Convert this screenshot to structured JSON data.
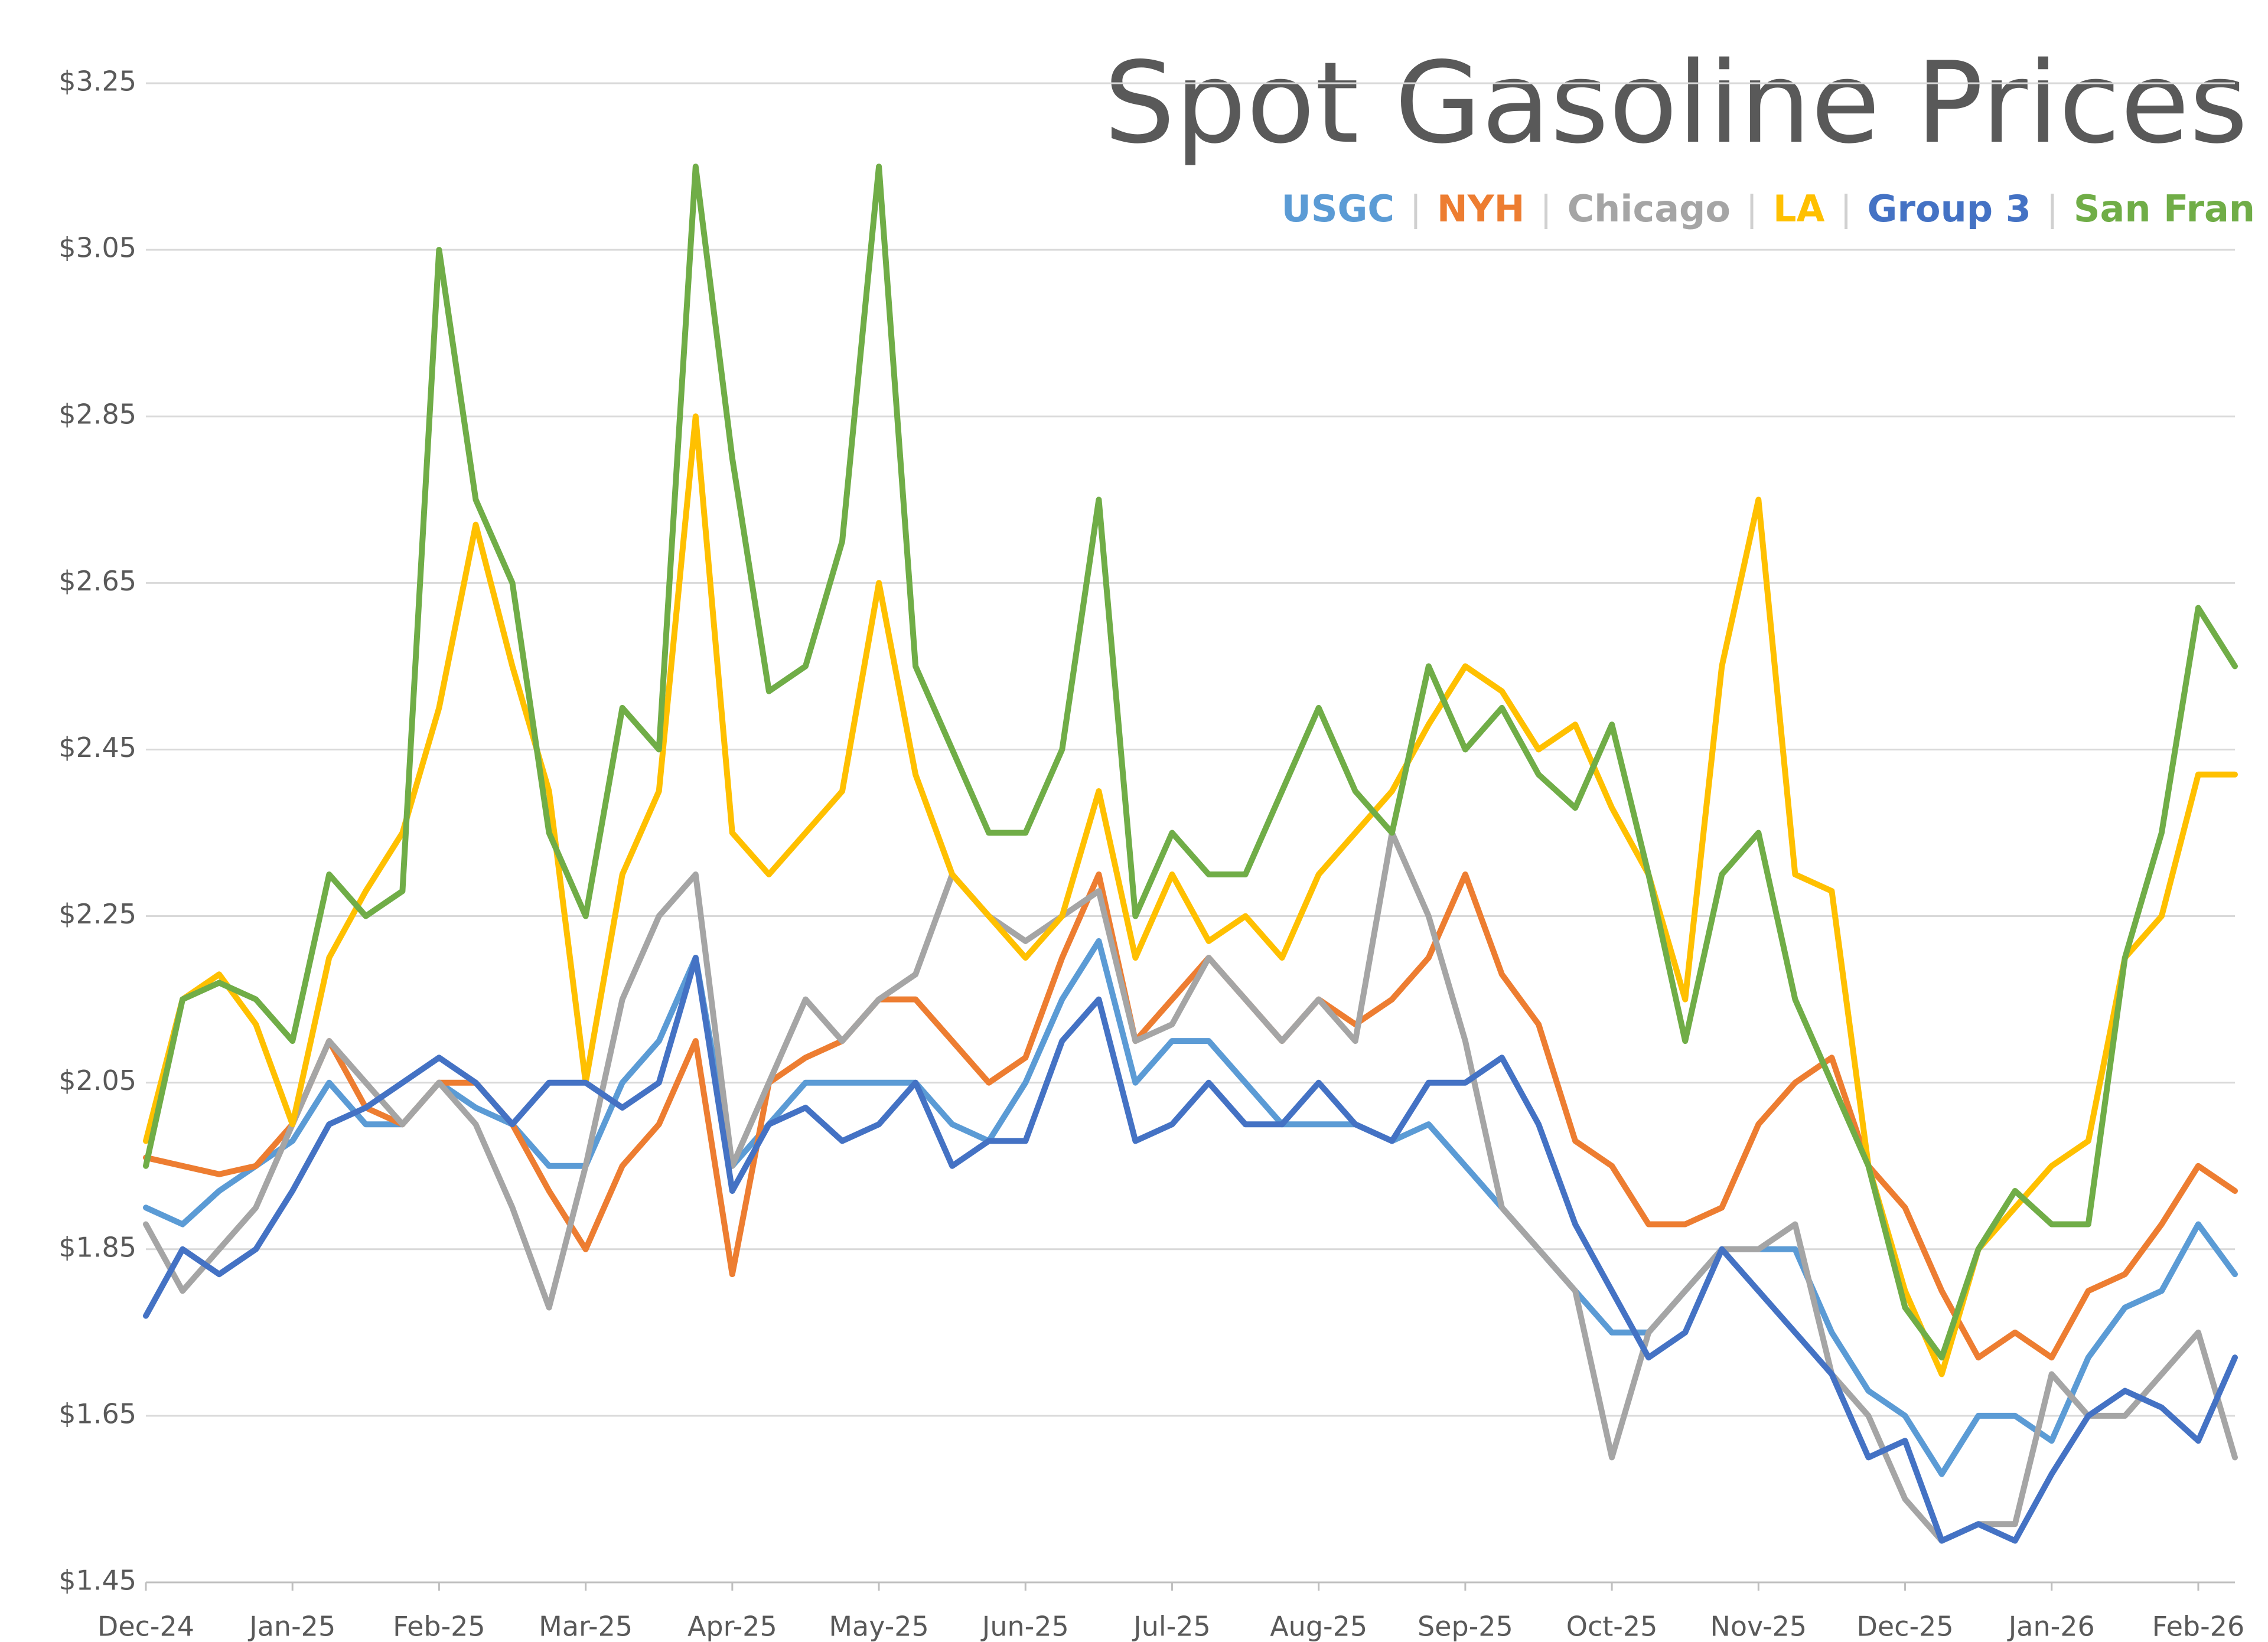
{
  "chart_data": {
    "type": "line",
    "title": "Spot Gasoline Prices",
    "categories": [
      "Dec-24",
      null,
      null,
      null,
      "Jan-25",
      null,
      null,
      null,
      "Feb-25",
      null,
      null,
      null,
      "Mar-25",
      null,
      null,
      null,
      "Apr-25",
      null,
      null,
      null,
      "May-25",
      null,
      null,
      null,
      "Jun-25",
      null,
      null,
      null,
      "Jul-25",
      null,
      null,
      null,
      "Aug-25",
      null,
      null,
      null,
      "Sep-25",
      null,
      null,
      null,
      "Oct-25",
      null,
      null,
      null,
      "Nov-25",
      null,
      null,
      null,
      "Dec-25",
      null,
      null,
      null,
      "Jan-26",
      null,
      null,
      null,
      "Feb-26",
      null
    ],
    "ylim": [
      1.45,
      3.25
    ],
    "yticks": [
      {
        "value": 1.45,
        "label": "$1.45"
      },
      {
        "value": 1.65,
        "label": "$1.65"
      },
      {
        "value": 1.85,
        "label": "$1.85"
      },
      {
        "value": 2.05,
        "label": "$2.05"
      },
      {
        "value": 2.25,
        "label": "$2.25"
      },
      {
        "value": 2.45,
        "label": "$2.45"
      },
      {
        "value": 2.65,
        "label": "$2.65"
      },
      {
        "value": 2.85,
        "label": "$2.85"
      },
      {
        "value": 3.05,
        "label": "$3.05"
      },
      {
        "value": 3.25,
        "label": "$3.25"
      }
    ],
    "grid": true,
    "series": [
      {
        "name": "USGC",
        "color": "#5b9bd5",
        "values": [
          1.9,
          1.88,
          1.92,
          1.95,
          1.98,
          2.05,
          2.0,
          2.0,
          2.05,
          2.02,
          2.0,
          1.95,
          1.95,
          2.05,
          2.1,
          2.2,
          1.95,
          2.0,
          2.05,
          2.05,
          2.05,
          2.05,
          2.0,
          1.98,
          2.05,
          2.15,
          2.22,
          2.05,
          2.1,
          2.1,
          2.05,
          2.0,
          2.0,
          2.0,
          1.98,
          2.0,
          1.95,
          1.9,
          1.85,
          1.8,
          1.75,
          1.75,
          1.8,
          1.85,
          1.85,
          1.85,
          1.75,
          1.68,
          1.65,
          1.58,
          1.65,
          1.65,
          1.62,
          1.72,
          1.78,
          1.8,
          1.88,
          1.82
        ]
      },
      {
        "name": "NYH",
        "color": "#ed7d31",
        "values": [
          1.96,
          1.95,
          1.94,
          1.95,
          2.0,
          2.1,
          2.02,
          2.0,
          2.05,
          2.05,
          2.0,
          1.92,
          1.85,
          1.95,
          2.0,
          2.1,
          1.82,
          2.05,
          2.08,
          2.1,
          2.15,
          2.15,
          2.1,
          2.05,
          2.08,
          2.2,
          2.3,
          2.1,
          2.15,
          2.2,
          2.15,
          2.1,
          2.15,
          2.12,
          2.15,
          2.2,
          2.3,
          2.18,
          2.12,
          1.98,
          1.95,
          1.88,
          1.88,
          1.9,
          2.0,
          2.05,
          2.08,
          1.95,
          1.9,
          1.8,
          1.72,
          1.75,
          1.72,
          1.8,
          1.82,
          1.88,
          1.95,
          1.92
        ]
      },
      {
        "name": "Chicago",
        "color": "#a5a5a5",
        "values": [
          1.88,
          1.8,
          1.85,
          1.9,
          2.0,
          2.1,
          2.05,
          2.0,
          2.05,
          2.0,
          1.9,
          1.78,
          1.95,
          2.15,
          2.25,
          2.3,
          1.95,
          2.05,
          2.15,
          2.1,
          2.15,
          2.18,
          2.3,
          2.25,
          2.22,
          2.25,
          2.28,
          2.1,
          2.12,
          2.2,
          2.15,
          2.1,
          2.15,
          2.1,
          2.35,
          2.25,
          2.1,
          1.9,
          1.85,
          1.8,
          1.6,
          1.75,
          1.8,
          1.85,
          1.85,
          1.88,
          1.7,
          1.65,
          1.55,
          1.5,
          1.52,
          1.52,
          1.7,
          1.65,
          1.65,
          1.7,
          1.75,
          1.6
        ]
      },
      {
        "name": "LA",
        "color": "#ffc000",
        "values": [
          1.98,
          2.15,
          2.18,
          2.12,
          2.0,
          2.2,
          2.28,
          2.35,
          2.5,
          2.72,
          2.55,
          2.4,
          2.05,
          2.3,
          2.4,
          2.85,
          2.35,
          2.3,
          2.35,
          2.4,
          2.65,
          2.42,
          2.3,
          2.25,
          2.2,
          2.25,
          2.4,
          2.2,
          2.3,
          2.22,
          2.25,
          2.2,
          2.3,
          2.35,
          2.4,
          2.48,
          2.55,
          2.52,
          2.45,
          2.48,
          2.38,
          2.3,
          2.15,
          2.55,
          2.75,
          2.3,
          2.28,
          1.95,
          1.8,
          1.7,
          1.85,
          1.9,
          1.95,
          1.98,
          2.2,
          2.25,
          2.42,
          2.42
        ]
      },
      {
        "name": "Group 3",
        "color": "#4472c4",
        "values": [
          1.77,
          1.85,
          1.82,
          1.85,
          1.92,
          2.0,
          2.02,
          2.05,
          2.08,
          2.05,
          2.0,
          2.05,
          2.05,
          2.02,
          2.05,
          2.2,
          1.92,
          2.0,
          2.02,
          1.98,
          2.0,
          2.05,
          1.95,
          1.98,
          1.98,
          2.1,
          2.15,
          1.98,
          2.0,
          2.05,
          2.0,
          2.0,
          2.05,
          2.0,
          1.98,
          2.05,
          2.05,
          2.08,
          2.0,
          1.88,
          1.8,
          1.72,
          1.75,
          1.85,
          1.8,
          1.75,
          1.7,
          1.6,
          1.62,
          1.5,
          1.52,
          1.5,
          1.58,
          1.65,
          1.68,
          1.66,
          1.62,
          1.72
        ]
      },
      {
        "name": "San Fran",
        "color": "#70ad47",
        "values": [
          1.95,
          2.15,
          2.17,
          2.15,
          2.1,
          2.3,
          2.25,
          2.28,
          3.05,
          2.75,
          2.65,
          2.35,
          2.25,
          2.5,
          2.45,
          3.15,
          2.8,
          2.52,
          2.55,
          2.7,
          3.15,
          2.55,
          2.45,
          2.35,
          2.35,
          2.45,
          2.75,
          2.25,
          2.35,
          2.3,
          2.3,
          2.4,
          2.5,
          2.4,
          2.35,
          2.55,
          2.45,
          2.5,
          2.42,
          2.38,
          2.48,
          2.3,
          2.1,
          2.3,
          2.35,
          2.15,
          2.05,
          1.95,
          1.78,
          1.72,
          1.85,
          1.92,
          1.88,
          1.88,
          2.2,
          2.35,
          2.62,
          2.55
        ]
      }
    ]
  }
}
